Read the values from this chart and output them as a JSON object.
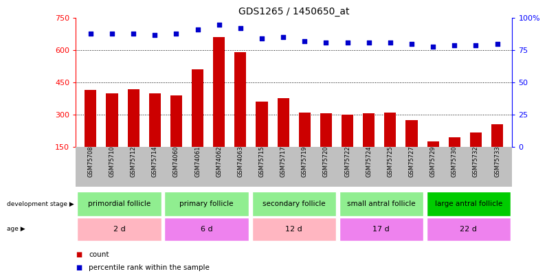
{
  "title": "GDS1265 / 1450650_at",
  "samples": [
    "GSM75708",
    "GSM75710",
    "GSM75712",
    "GSM75714",
    "GSM74060",
    "GSM74061",
    "GSM74062",
    "GSM74063",
    "GSM75715",
    "GSM75717",
    "GSM75719",
    "GSM75720",
    "GSM75722",
    "GSM75724",
    "GSM75725",
    "GSM75727",
    "GSM75729",
    "GSM75730",
    "GSM75732",
    "GSM75733"
  ],
  "counts": [
    415,
    400,
    418,
    400,
    390,
    510,
    660,
    590,
    360,
    375,
    310,
    305,
    300,
    305,
    310,
    275,
    175,
    195,
    215,
    255
  ],
  "percentiles": [
    88,
    88,
    88,
    87,
    88,
    91,
    95,
    92,
    84,
    85,
    82,
    81,
    81,
    81,
    81,
    80,
    78,
    79,
    79,
    80
  ],
  "ylim_left": [
    150,
    750
  ],
  "ylim_right": [
    0,
    100
  ],
  "yticks_left": [
    150,
    300,
    450,
    600,
    750
  ],
  "yticks_right": [
    0,
    25,
    50,
    75,
    100
  ],
  "ytick_right_labels": [
    "0",
    "25",
    "50",
    "75",
    "100%"
  ],
  "grid_lines": [
    300,
    450,
    600
  ],
  "groups": [
    {
      "label": "primordial follicle",
      "age": "2 d",
      "start": 0,
      "end": 4,
      "stage_color": "#90EE90",
      "age_color": "#FFB6C1"
    },
    {
      "label": "primary follicle",
      "age": "6 d",
      "start": 4,
      "end": 8,
      "stage_color": "#90EE90",
      "age_color": "#EE82EE"
    },
    {
      "label": "secondary follicle",
      "age": "12 d",
      "start": 8,
      "end": 12,
      "stage_color": "#90EE90",
      "age_color": "#FFB6C1"
    },
    {
      "label": "small antral follicle",
      "age": "17 d",
      "start": 12,
      "end": 16,
      "stage_color": "#90EE90",
      "age_color": "#EE82EE"
    },
    {
      "label": "large antral follicle",
      "age": "22 d",
      "start": 16,
      "end": 20,
      "stage_color": "#00CC00",
      "age_color": "#EE82EE"
    }
  ],
  "bar_color": "#CC0000",
  "dot_color": "#0000CC",
  "plot_bg": "#ffffff",
  "xtick_bg": "#C0C0C0",
  "legend_count_color": "#CC0000",
  "legend_pct_color": "#0000CC",
  "title_fontsize": 10,
  "axis_fontsize": 8,
  "label_fontsize": 7.5,
  "legend_fontsize": 7.5
}
